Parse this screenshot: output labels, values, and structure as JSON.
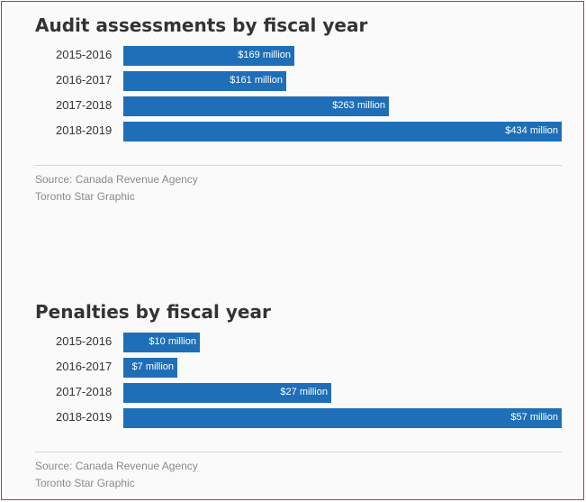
{
  "chart_data": [
    {
      "type": "bar",
      "orientation": "horizontal",
      "title": "Audit assessments by fiscal year",
      "categories": [
        "2015-2016",
        "2016-2017",
        "2017-2018",
        "2018-2019"
      ],
      "values": [
        169,
        161,
        263,
        434
      ],
      "unit": "million",
      "data_labels": [
        "$169 million",
        "$161 million",
        "$263 million",
        "$434 million"
      ],
      "grid": false,
      "legend": "none",
      "source": "Source: Canada Revenue Agency",
      "credit": "Toronto Star Graphic",
      "bar_color": "#1e6fb8"
    },
    {
      "type": "bar",
      "orientation": "horizontal",
      "title": "Penalties by fiscal year",
      "categories": [
        "2015-2016",
        "2016-2017",
        "2017-2018",
        "2018-2019"
      ],
      "values": [
        10,
        7,
        27,
        57
      ],
      "unit": "million",
      "data_labels": [
        "$10 million",
        "$7 million",
        "$27 million",
        "$57 million"
      ],
      "grid": false,
      "legend": "none",
      "source": "Source: Canada Revenue Agency",
      "credit": "Toronto Star Graphic",
      "bar_color": "#1e6fb8"
    }
  ]
}
